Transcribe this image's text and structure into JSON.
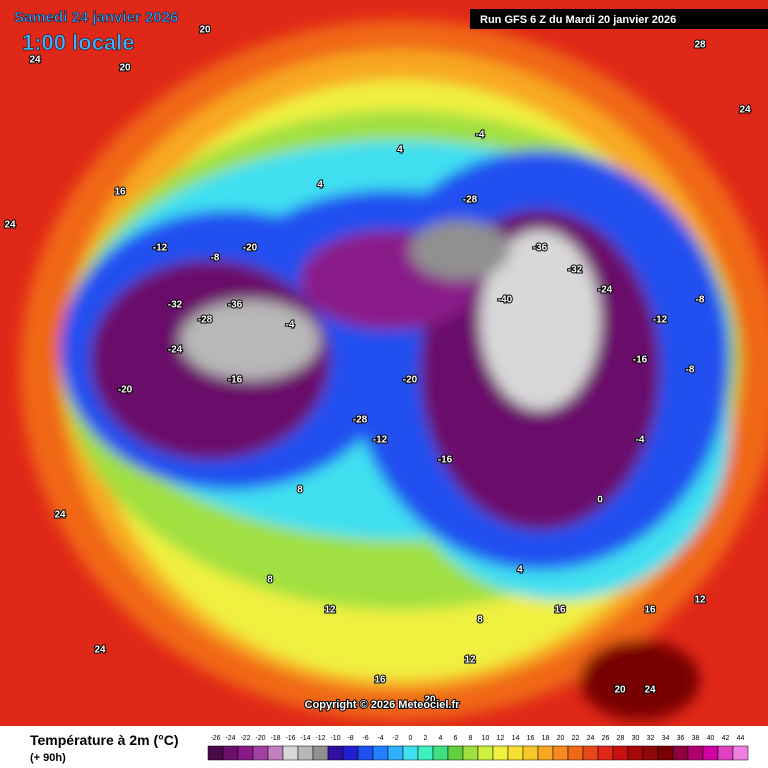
{
  "header": {
    "date": "Samedi 24 janvier 2026",
    "time": "1:00 locale",
    "run": "Run GFS 6 Z du Mardi 20 janvier 2026"
  },
  "copyright": "Copyright © 2026 Meteociel.fr",
  "legend": {
    "title": "Température à 2m (°C)",
    "subtitle": "(+ 90h)",
    "ticks": [
      -26,
      -24,
      -22,
      -20,
      -18,
      -16,
      -14,
      -12,
      -10,
      -8,
      -6,
      -4,
      -2,
      0,
      2,
      4,
      6,
      8,
      10,
      12,
      14,
      16,
      18,
      20,
      22,
      24,
      26,
      28,
      30,
      32,
      34,
      36,
      38,
      40,
      42,
      44
    ],
    "colors": [
      "#4a0a4a",
      "#6a0f6a",
      "#8a1a8a",
      "#a040a0",
      "#c080c0",
      "#d8d8d8",
      "#b8b8b8",
      "#909090",
      "#3010a0",
      "#2020d0",
      "#2050f0",
      "#2080ff",
      "#30b0ff",
      "#40e0f0",
      "#40f0c0",
      "#40e080",
      "#60d040",
      "#a0e040",
      "#d0f040",
      "#f0f040",
      "#f8e030",
      "#f8c828",
      "#f8a820",
      "#f88820",
      "#f06818",
      "#e84818",
      "#e02818",
      "#c81010",
      "#a80808",
      "#900808",
      "#780000",
      "#900040",
      "#b00070",
      "#d000a0",
      "#e040c0",
      "#f080e0"
    ]
  },
  "map_labels": [
    20,
    24,
    20,
    16,
    24,
    28,
    24,
    -12,
    -8,
    -20,
    -32,
    -36,
    -28,
    -24,
    -16,
    -20,
    -4,
    4,
    -36,
    -40,
    -32,
    -24,
    -28,
    -16,
    -12,
    -8,
    -4,
    0,
    4,
    8,
    12,
    16,
    20,
    24,
    -20,
    -12,
    8,
    12,
    16,
    24,
    4,
    -4,
    -16,
    8,
    12,
    24,
    20,
    16,
    -8,
    -28
  ]
}
